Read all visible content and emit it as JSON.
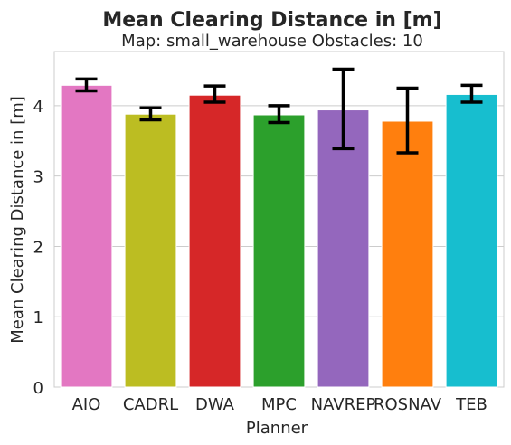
{
  "chart_data": {
    "type": "bar",
    "title": "Mean Clearing Distance in [m]",
    "subtitle": "Map: small_warehouse Obstacles: 10",
    "xlabel": "Planner",
    "ylabel": "Mean Clearing Distance in [m]",
    "categories": [
      "AIO",
      "CADRL",
      "DWA",
      "MPC",
      "NAVREP",
      "ROSNAV",
      "TEB"
    ],
    "values": [
      4.29,
      3.88,
      4.15,
      3.87,
      3.94,
      3.78,
      4.16
    ],
    "error_low": [
      4.21,
      3.8,
      4.05,
      3.76,
      3.39,
      3.33,
      4.05
    ],
    "error_high": [
      4.38,
      3.97,
      4.28,
      4.0,
      4.52,
      4.25,
      4.29
    ],
    "colors": [
      "#e377c2",
      "#bcbd22",
      "#d62728",
      "#2ca02c",
      "#9467bd",
      "#ff7f0e",
      "#17becf"
    ],
    "ylim": [
      0,
      4.77
    ],
    "yticks": [
      0,
      1,
      2,
      3,
      4
    ],
    "grid": "horizontal",
    "legend": "none"
  }
}
